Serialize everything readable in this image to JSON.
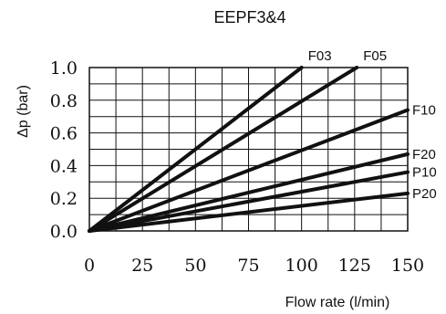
{
  "chart_data": {
    "type": "line",
    "title": "EEPF3&4",
    "xlabel": "Flow rate (l/min)",
    "ylabel": "Δp (bar)",
    "xlim": [
      0,
      150
    ],
    "ylim": [
      0,
      1.0
    ],
    "x_ticks": [
      "0",
      "25",
      "50",
      "75",
      "100",
      "125",
      "150"
    ],
    "y_ticks": [
      "0.0",
      "0.2",
      "0.4",
      "0.6",
      "0.8",
      "1.0"
    ],
    "grid": true,
    "series": [
      {
        "name": "F03",
        "x": [
          0,
          100
        ],
        "y": [
          0,
          1.0
        ]
      },
      {
        "name": "F05",
        "x": [
          0,
          126
        ],
        "y": [
          0,
          1.0
        ]
      },
      {
        "name": "F10",
        "x": [
          0,
          150
        ],
        "y": [
          0,
          0.74
        ]
      },
      {
        "name": "F20",
        "x": [
          0,
          150
        ],
        "y": [
          0,
          0.47
        ]
      },
      {
        "name": "P10",
        "x": [
          0,
          150
        ],
        "y": [
          0,
          0.36
        ]
      },
      {
        "name": "P20",
        "x": [
          0,
          150
        ],
        "y": [
          0,
          0.23
        ]
      }
    ]
  }
}
